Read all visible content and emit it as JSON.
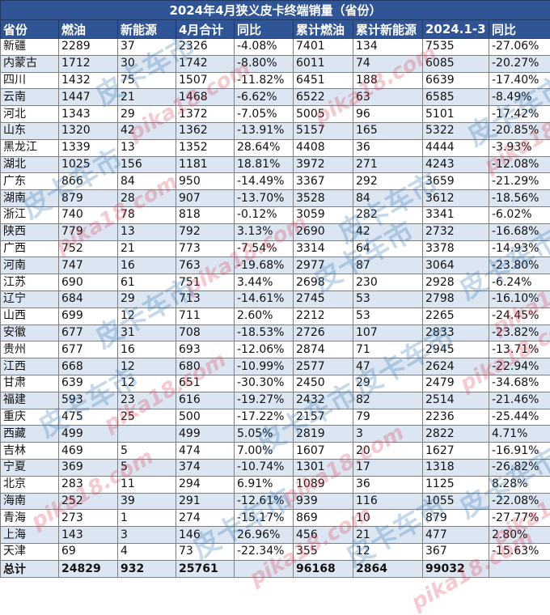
{
  "title": "2024年4月狭义皮卡终端销量（省份）",
  "headers": [
    "省份",
    "燃油",
    "新能源",
    "4月合计",
    "同比",
    "累计燃油",
    "累计新能源",
    "2024.1-3",
    "同比"
  ],
  "rows": [
    [
      "新疆",
      "2289",
      "37",
      "2326",
      "-4.08%",
      "7401",
      "134",
      "7535",
      "-27.06%"
    ],
    [
      "内蒙古",
      "1712",
      "30",
      "1742",
      "-8.80%",
      "6011",
      "74",
      "6085",
      "-20.27%"
    ],
    [
      "四川",
      "1432",
      "75",
      "1507",
      "-11.82%",
      "6451",
      "188",
      "6639",
      "-17.40%"
    ],
    [
      "云南",
      "1447",
      "21",
      "1468",
      "-6.62%",
      "6522",
      "63",
      "6585",
      "-8.49%"
    ],
    [
      "河北",
      "1343",
      "29",
      "1372",
      "-7.05%",
      "5005",
      "96",
      "5101",
      "-17.42%"
    ],
    [
      "山东",
      "1320",
      "42",
      "1362",
      "-13.91%",
      "5157",
      "165",
      "5322",
      "-20.85%"
    ],
    [
      "黑龙江",
      "1339",
      "13",
      "1352",
      "28.64%",
      "4408",
      "36",
      "4444",
      "-3.93%"
    ],
    [
      "湖北",
      "1025",
      "156",
      "1181",
      "18.81%",
      "3972",
      "271",
      "4243",
      "-12.08%"
    ],
    [
      "广东",
      "866",
      "84",
      "950",
      "-14.49%",
      "3367",
      "292",
      "3659",
      "-21.29%"
    ],
    [
      "湖南",
      "879",
      "28",
      "907",
      "-13.70%",
      "3528",
      "84",
      "3612",
      "-18.56%"
    ],
    [
      "浙江",
      "740",
      "78",
      "818",
      "-0.12%",
      "3059",
      "282",
      "3341",
      "-6.02%"
    ],
    [
      "陕西",
      "779",
      "13",
      "792",
      "3.13%",
      "2690",
      "42",
      "2732",
      "-16.68%"
    ],
    [
      "广西",
      "752",
      "21",
      "773",
      "-7.54%",
      "3314",
      "64",
      "3378",
      "-14.93%"
    ],
    [
      "河南",
      "747",
      "16",
      "763",
      "-19.68%",
      "2977",
      "87",
      "3064",
      "-23.80%"
    ],
    [
      "江苏",
      "690",
      "61",
      "751",
      "3.44%",
      "2698",
      "230",
      "2928",
      "-6.24%"
    ],
    [
      "辽宁",
      "684",
      "29",
      "713",
      "-14.61%",
      "2745",
      "53",
      "2798",
      "-16.10%"
    ],
    [
      "山西",
      "699",
      "12",
      "711",
      "2.60%",
      "2212",
      "53",
      "2265",
      "-24.45%"
    ],
    [
      "安徽",
      "677",
      "31",
      "708",
      "-18.53%",
      "2726",
      "107",
      "2833",
      "-23.82%"
    ],
    [
      "贵州",
      "677",
      "16",
      "693",
      "-12.06%",
      "2874",
      "71",
      "2945",
      "-13.71%"
    ],
    [
      "江西",
      "668",
      "12",
      "680",
      "-10.99%",
      "2577",
      "47",
      "2624",
      "-22.94%"
    ],
    [
      "甘肃",
      "639",
      "12",
      "651",
      "-30.30%",
      "2450",
      "29",
      "2479",
      "-34.68%"
    ],
    [
      "福建",
      "593",
      "23",
      "616",
      "-19.27%",
      "2432",
      "82",
      "2514",
      "-21.46%"
    ],
    [
      "重庆",
      "475",
      "25",
      "500",
      "-17.22%",
      "2157",
      "79",
      "2236",
      "-25.44%"
    ],
    [
      "西藏",
      "499",
      "",
      "499",
      "5.05%",
      "2819",
      "3",
      "2822",
      "4.71%"
    ],
    [
      "吉林",
      "469",
      "5",
      "474",
      "7.00%",
      "1607",
      "20",
      "1627",
      "-16.91%"
    ],
    [
      "宁夏",
      "369",
      "5",
      "374",
      "-10.74%",
      "1301",
      "17",
      "1318",
      "-26.82%"
    ],
    [
      "北京",
      "283",
      "11",
      "294",
      "6.91%",
      "1089",
      "36",
      "1125",
      "8.28%"
    ],
    [
      "海南",
      "252",
      "39",
      "291",
      "-12.61%",
      "939",
      "116",
      "1055",
      "-22.08%"
    ],
    [
      "青海",
      "273",
      "1",
      "274",
      "-15.17%",
      "869",
      "10",
      "879",
      "-27.77%"
    ],
    [
      "上海",
      "143",
      "3",
      "146",
      "26.96%",
      "456",
      "21",
      "477",
      "2.80%"
    ],
    [
      "天津",
      "69",
      "4",
      "73",
      "-22.34%",
      "355",
      "12",
      "367",
      "-15.63%"
    ]
  ],
  "total": [
    "总计",
    "24829",
    "932",
    "25761",
    "",
    "96168",
    "2864",
    "99032",
    ""
  ],
  "watermark": {
    "brand_cn": "皮卡车市",
    "brand_url": "pika18.com"
  },
  "colors": {
    "header_bg": "#2f5597",
    "stripe_bg": "#dce6f2",
    "watermark_blue": "#2e75b6",
    "watermark_red": "#e0405a"
  }
}
